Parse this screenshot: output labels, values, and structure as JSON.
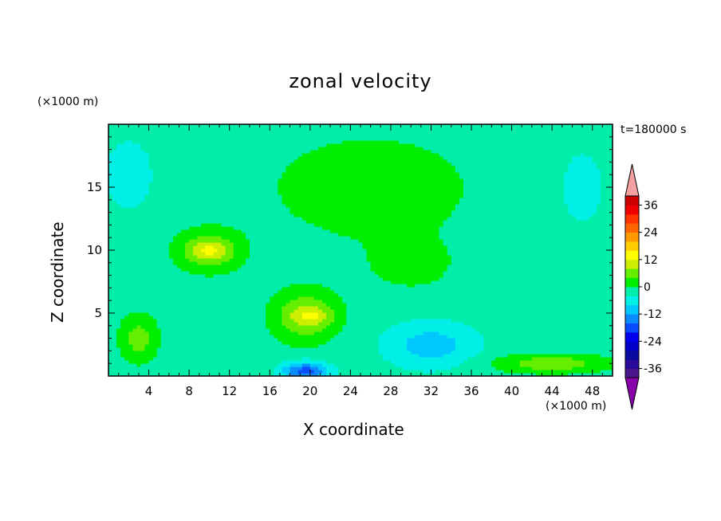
{
  "chart_data": {
    "type": "heatmap",
    "title": "zonal velocity",
    "xlabel": "X coordinate",
    "ylabel": "Z coordinate",
    "x_unit": "(×1000 m)",
    "y_unit": "(×1000 m)",
    "time_label": "t=180000 s",
    "xlim": [
      0,
      50
    ],
    "ylim": [
      0,
      20
    ],
    "x_ticks": [
      4,
      8,
      12,
      16,
      20,
      24,
      28,
      32,
      36,
      40,
      44,
      48
    ],
    "y_ticks": [
      5,
      10,
      15
    ],
    "colorbar": {
      "levels": [
        -40,
        -36,
        -32,
        -28,
        -24,
        -20,
        -16,
        -12,
        -8,
        -4,
        0,
        4,
        8,
        12,
        16,
        20,
        24,
        28,
        32,
        36,
        40
      ],
      "tick_labels": [
        "36",
        "24",
        "12",
        "0",
        "-12",
        "-24",
        "-36"
      ],
      "tick_values": [
        36,
        24,
        12,
        0,
        -12,
        -24,
        -36
      ],
      "colors": [
        "#4a148c",
        "#2a0a9a",
        "#0a0aa0",
        "#0000c8",
        "#0000ee",
        "#0a4cff",
        "#0a8cff",
        "#00c8ff",
        "#00f0e8",
        "#00eeaa",
        "#00ee00",
        "#66ee00",
        "#ccee00",
        "#ffff00",
        "#ffcc00",
        "#ff9900",
        "#ff6600",
        "#ff3300",
        "#ee0000",
        "#cc0000"
      ],
      "extend_high_color": "#f4a0a0",
      "extend_low_color": "#8800aa"
    },
    "field": {
      "background_value": -2,
      "features": [
        {
          "x": 26,
          "z": 15,
          "rx": 12,
          "rz": 5,
          "value": 2
        },
        {
          "x": 30,
          "z": 9,
          "rx": 6,
          "rz": 3,
          "value": 1
        },
        {
          "x": 10,
          "z": 10,
          "rx": 3.5,
          "rz": 1.8,
          "value": 7
        },
        {
          "x": 10,
          "z": 10,
          "rx": 1.8,
          "rz": 0.8,
          "value": 13
        },
        {
          "x": 19.5,
          "z": 4.8,
          "rx": 3.5,
          "rz": 2.2,
          "value": 8
        },
        {
          "x": 20,
          "z": 4.8,
          "rx": 1.8,
          "rz": 0.8,
          "value": 13
        },
        {
          "x": 19.5,
          "z": 0.4,
          "rx": 2.5,
          "rz": 0.8,
          "value": -18
        },
        {
          "x": 32,
          "z": 2.5,
          "rx": 5,
          "rz": 2,
          "value": -10
        },
        {
          "x": 3,
          "z": 3,
          "rx": 2,
          "rz": 2,
          "value": 6
        },
        {
          "x": 44,
          "z": 1,
          "rx": 6,
          "rz": 0.8,
          "value": 7
        },
        {
          "x": 47,
          "z": 15,
          "rx": 2.5,
          "rz": 3.5,
          "value": -6
        },
        {
          "x": 2,
          "z": 16,
          "rx": 3,
          "rz": 3.5,
          "value": -6
        }
      ]
    }
  }
}
